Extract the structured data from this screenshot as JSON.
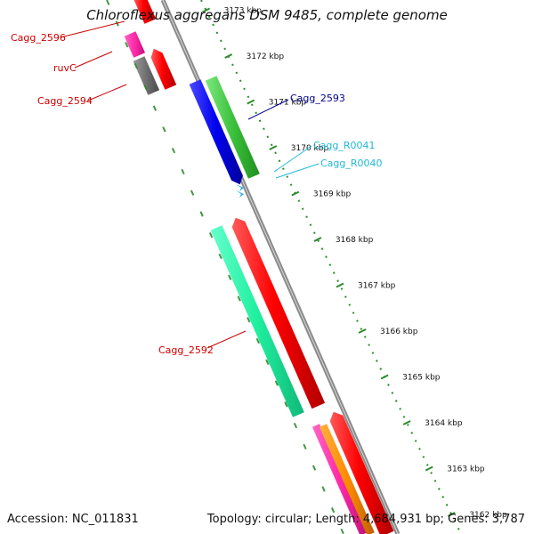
{
  "title": "Chloroflexus aggregans DSM 9485, complete genome",
  "footer": {
    "accession": "Accession: NC_011831",
    "summary": "Topology: circular; Length: 4,684,931 bp; Genes: 3,787"
  },
  "colors": {
    "backbone": "#888888",
    "axis": "#2e8b2e",
    "label_red": "#cc0000",
    "label_blue": "#00008b",
    "label_cyan": "#22b8d8"
  },
  "axis_ticks": [
    {
      "kbp": 3173,
      "label": "3173 kbp"
    },
    {
      "kbp": 3172,
      "label": "3172 kbp"
    },
    {
      "kbp": 3171,
      "label": "3171 kbp"
    },
    {
      "kbp": 3170,
      "label": "3170 kbp"
    },
    {
      "kbp": 3169,
      "label": "3169 kbp"
    },
    {
      "kbp": 3168,
      "label": "3168 kbp"
    },
    {
      "kbp": 3167,
      "label": "3167 kbp"
    },
    {
      "kbp": 3166,
      "label": "3166 kbp"
    },
    {
      "kbp": 3165,
      "label": "3165 kbp"
    },
    {
      "kbp": 3164,
      "label": "3164 kbp"
    },
    {
      "kbp": 3163,
      "label": "3163 kbp"
    },
    {
      "kbp": 3162,
      "label": "3162 kbp"
    }
  ],
  "labels": [
    {
      "name": "gene-label-cagg-2596",
      "text": "Cagg_2596",
      "color": "#cc0000"
    },
    {
      "name": "gene-label-ruvc",
      "text": "ruvC",
      "color": "#cc0000"
    },
    {
      "name": "gene-label-cagg-2594",
      "text": "Cagg_2594",
      "color": "#cc0000"
    },
    {
      "name": "gene-label-cagg-2593",
      "text": "Cagg_2593",
      "color": "#00008b"
    },
    {
      "name": "gene-label-cagg-r0041",
      "text": "Cagg_R0041",
      "color": "#22b8d8"
    },
    {
      "name": "gene-label-cagg-r0040",
      "text": "Cagg_R0040",
      "color": "#22b8d8"
    },
    {
      "name": "gene-label-cagg-2592",
      "text": "Cagg_2592",
      "color": "#cc0000"
    }
  ]
}
